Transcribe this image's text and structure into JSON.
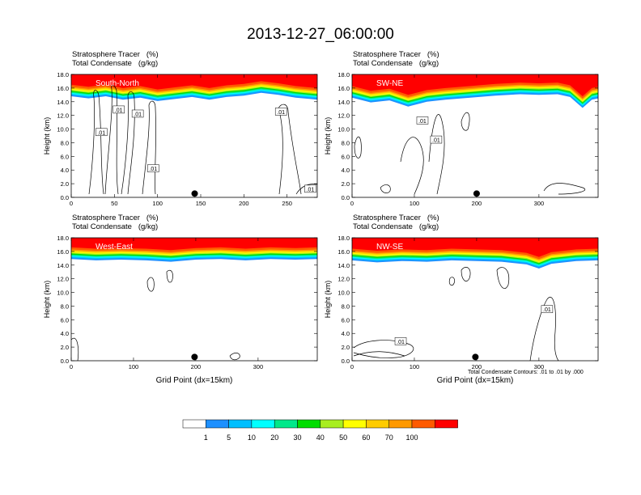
{
  "title": "2013-12-27_06:00:00",
  "colors": {
    "levels": [
      "#ffffff",
      "#1e90ff",
      "#00bfff",
      "#00ffff",
      "#00e88a",
      "#00dd00",
      "#a8ee20",
      "#ffff00",
      "#ffcc00",
      "#ff9900",
      "#ff5a00",
      "#ff0000"
    ]
  },
  "chart_data": [
    {
      "type": "heatmap",
      "name": "South-North",
      "header_line1": "Stratosphere Tracer   (%)",
      "header_line2": "Total Condensate   (g/kg)",
      "label": "South-North",
      "xlabel": "",
      "ylabel": "Height (km)",
      "xlim": [
        0,
        285
      ],
      "ylim": [
        0,
        18
      ],
      "x_ticks": [
        0,
        50,
        100,
        150,
        200,
        250
      ],
      "y_ticks": [
        "0.0",
        "2.0",
        "4.0",
        "6.0",
        "8.0",
        "10.0",
        "12.0",
        "14.0",
        "16.0",
        "18.0"
      ],
      "marker_x": 143,
      "contour_labels": [
        {
          "text": ".01",
          "x": 55,
          "y": 12.8
        },
        {
          "text": ".01",
          "x": 77,
          "y": 12.2
        },
        {
          "text": ".01",
          "x": 35,
          "y": 9.5
        },
        {
          "text": ".01",
          "x": 95,
          "y": 4.2
        },
        {
          "text": ".01",
          "x": 243,
          "y": 12.5
        },
        {
          "text": ".01",
          "x": 277,
          "y": 1.2
        }
      ],
      "tropopause": [
        [
          0,
          15.7
        ],
        [
          20,
          15.4
        ],
        [
          40,
          15.7
        ],
        [
          60,
          15.2
        ],
        [
          80,
          15.5
        ],
        [
          100,
          15.0
        ],
        [
          120,
          15.3
        ],
        [
          140,
          15.6
        ],
        [
          160,
          15.2
        ],
        [
          180,
          15.6
        ],
        [
          200,
          15.8
        ],
        [
          220,
          16.2
        ],
        [
          240,
          15.9
        ],
        [
          260,
          15.5
        ],
        [
          285,
          15.2
        ]
      ]
    },
    {
      "type": "heatmap",
      "name": "SW-NE",
      "header_line1": "Stratosphere Tracer   (%)",
      "header_line2": "Total Condensate   (g/kg)",
      "label": "SW-NE",
      "xlabel": "",
      "ylabel": "Height (km)",
      "xlim": [
        0,
        395
      ],
      "ylim": [
        0,
        18
      ],
      "x_ticks": [
        0,
        100,
        200,
        300
      ],
      "y_ticks": [
        "0.0",
        "2.0",
        "4.0",
        "6.0",
        "8.0",
        "10.0",
        "12.0",
        "14.0",
        "16.0",
        "18.0"
      ],
      "marker_x": 200,
      "contour_labels": [
        {
          "text": ".01",
          "x": 113,
          "y": 11.2
        },
        {
          "text": ".01",
          "x": 135,
          "y": 8.4
        }
      ],
      "tropopause": [
        [
          0,
          15.5
        ],
        [
          30,
          14.8
        ],
        [
          60,
          15.1
        ],
        [
          90,
          14.2
        ],
        [
          120,
          14.9
        ],
        [
          150,
          15.2
        ],
        [
          190,
          15.5
        ],
        [
          230,
          15.8
        ],
        [
          270,
          16.0
        ],
        [
          300,
          15.9
        ],
        [
          330,
          16.0
        ],
        [
          350,
          15.6
        ],
        [
          370,
          14.0
        ],
        [
          385,
          15.2
        ],
        [
          395,
          15.4
        ]
      ]
    },
    {
      "type": "heatmap",
      "name": "West-East",
      "header_line1": "Stratosphere Tracer   (%)",
      "header_line2": "Total Condensate   (g/kg)",
      "label": "West-East",
      "xlabel": "Grid Point (dx=15km)",
      "ylabel": "Height (km)",
      "xlim": [
        0,
        395
      ],
      "ylim": [
        0,
        18
      ],
      "x_ticks": [
        0,
        100,
        200,
        300
      ],
      "y_ticks": [
        "0.0",
        "2.0",
        "4.0",
        "6.0",
        "8.0",
        "10.0",
        "12.0",
        "14.0",
        "16.0",
        "18.0"
      ],
      "marker_x": 198,
      "contour_labels": [],
      "tropopause": [
        [
          0,
          15.8
        ],
        [
          40,
          15.6
        ],
        [
          80,
          15.7
        ],
        [
          120,
          15.6
        ],
        [
          160,
          15.4
        ],
        [
          200,
          15.7
        ],
        [
          240,
          15.8
        ],
        [
          280,
          15.6
        ],
        [
          320,
          15.8
        ],
        [
          360,
          15.7
        ],
        [
          395,
          15.8
        ]
      ]
    },
    {
      "type": "heatmap",
      "name": "NW-SE",
      "header_line1": "Stratosphere Tracer   (%)",
      "header_line2": "Total Condensate   (g/kg)",
      "label": "NW-SE",
      "xlabel": "Grid Point (dx=15km)",
      "ylabel": "Height (km)",
      "xlim": [
        0,
        395
      ],
      "ylim": [
        0,
        18
      ],
      "x_ticks": [
        0,
        100,
        200,
        300
      ],
      "y_ticks": [
        "0.0",
        "2.0",
        "4.0",
        "6.0",
        "8.0",
        "10.0",
        "12.0",
        "14.0",
        "16.0",
        "18.0"
      ],
      "marker_x": 198,
      "contour_labels": [
        {
          "text": ".01",
          "x": 313,
          "y": 7.5
        },
        {
          "text": ".01",
          "x": 78,
          "y": 2.8
        }
      ],
      "tropopause": [
        [
          0,
          15.6
        ],
        [
          40,
          15.3
        ],
        [
          80,
          15.5
        ],
        [
          120,
          15.4
        ],
        [
          160,
          15.6
        ],
        [
          200,
          15.5
        ],
        [
          240,
          15.4
        ],
        [
          280,
          15.0
        ],
        [
          300,
          14.4
        ],
        [
          320,
          15.1
        ],
        [
          360,
          15.5
        ],
        [
          395,
          15.6
        ]
      ]
    }
  ],
  "footnote": "Total Condensate Contours: .01 to .01 by .000",
  "colorbar": {
    "labels": [
      "1",
      "5",
      "10",
      "20",
      "30",
      "40",
      "50",
      "60",
      "70",
      "100"
    ]
  }
}
